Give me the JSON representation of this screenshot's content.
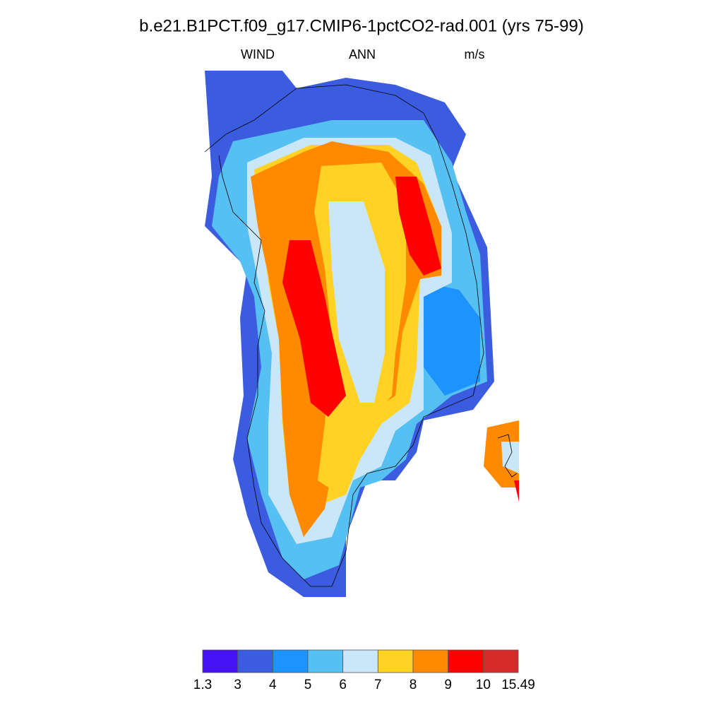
{
  "header": {
    "title": "b.e21.B1PCT.f09_g17.CMIP6-1pctCO2-rad.001 (yrs 75-99)",
    "left": "WIND",
    "center": "ANN",
    "right": "m/s"
  },
  "colorbar": {
    "levels": [
      1.3,
      3,
      4,
      5,
      6,
      7,
      8,
      9,
      10,
      15.49
    ],
    "colors": [
      "#4412f5",
      "#3c5ce0",
      "#1c93ff",
      "#56c0f2",
      "#c9e7f8",
      "#ffd224",
      "#ff8a00",
      "#ff0000",
      "#d72b2b"
    ]
  }
}
